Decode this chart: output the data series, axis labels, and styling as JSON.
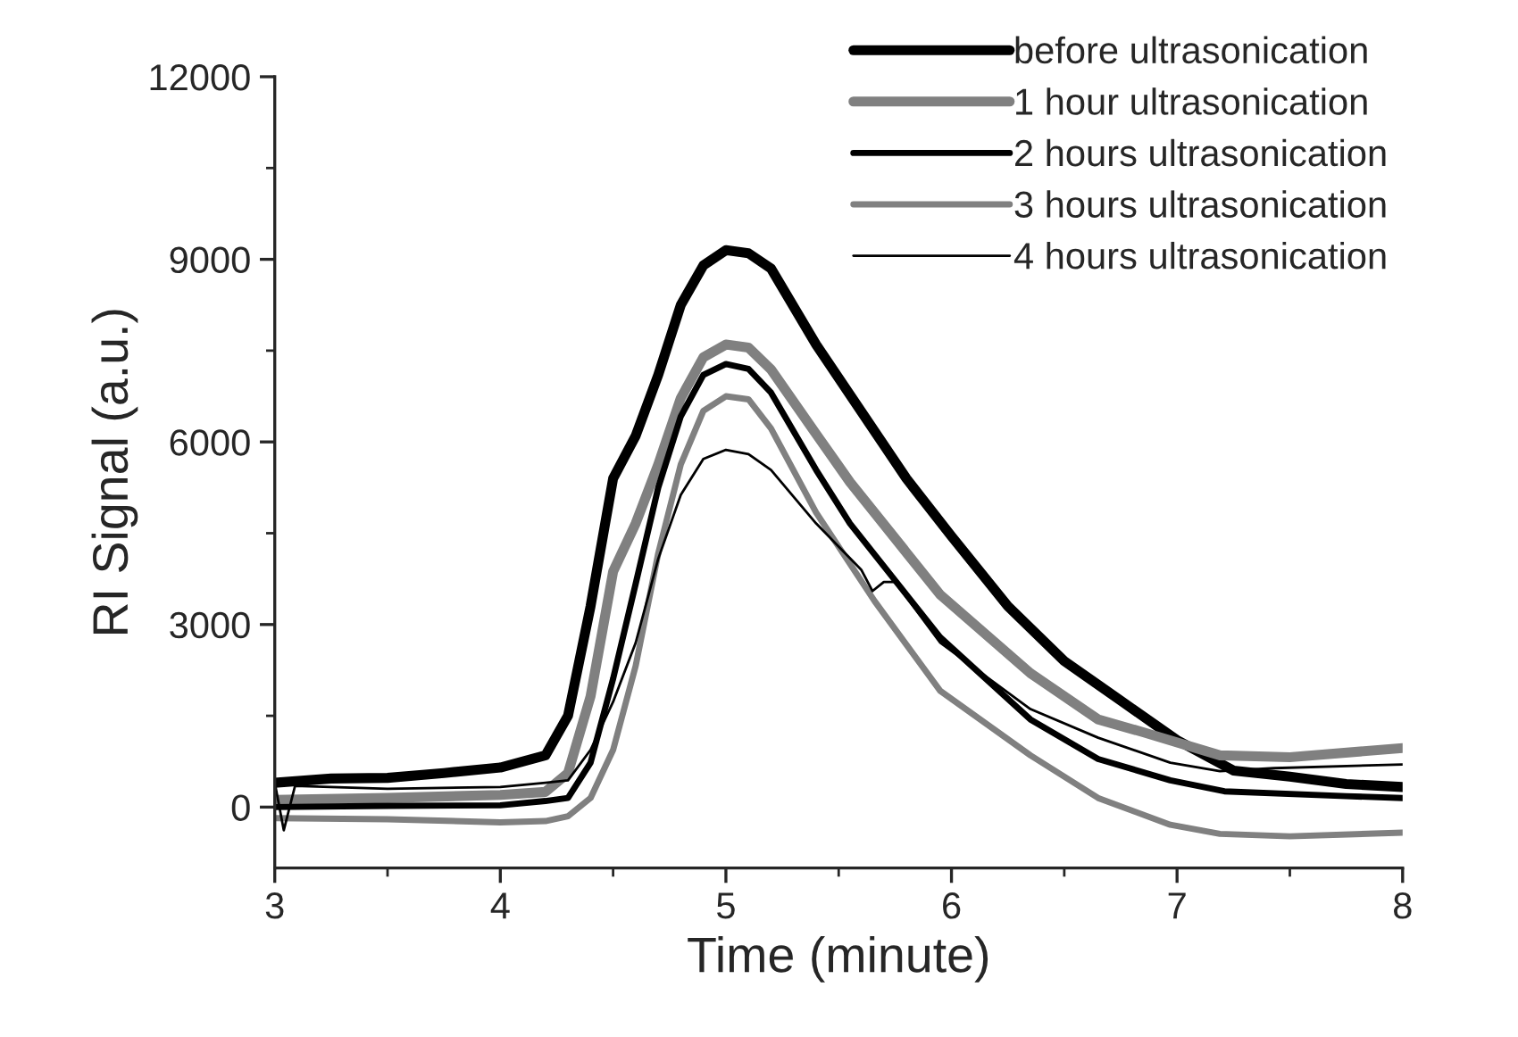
{
  "chart_data": {
    "type": "line",
    "xlabel": "Time (minute)",
    "ylabel": "RI Signal (a.u.)",
    "xlim": [
      3,
      8
    ],
    "xticks": [
      3,
      4,
      5,
      6,
      7,
      8
    ],
    "ylim": [
      -1000,
      12000
    ],
    "yticks": [
      0,
      3000,
      6000,
      9000,
      12000
    ],
    "grid": false,
    "legend": "top right",
    "line_style": "solid",
    "marker": "none",
    "series": [
      {
        "name": "before ultrasonication",
        "color": "#000000",
        "x": [
          3,
          3.25,
          3.5,
          3.75,
          4,
          4.2,
          4.3,
          4.4,
          4.5,
          4.6,
          4.7,
          4.8,
          4.9,
          5.0,
          5.1,
          5.2,
          5.4,
          5.6,
          5.8,
          6.0,
          6.25,
          6.5,
          6.75,
          7.0,
          7.25,
          7.5,
          7.75,
          8.0
        ],
        "values": [
          400,
          470,
          480,
          560,
          650,
          850,
          1500,
          3300,
          5400,
          6100,
          7100,
          8250,
          8900,
          9150,
          9100,
          8850,
          7600,
          6500,
          5400,
          4450,
          3300,
          2400,
          1750,
          1100,
          600,
          500,
          380,
          330
        ]
      },
      {
        "name": "1 hour ultrasonication",
        "color": "#808080",
        "x": [
          3,
          3.5,
          4,
          4.2,
          4.3,
          4.4,
          4.5,
          4.6,
          4.7,
          4.8,
          4.9,
          5.0,
          5.1,
          5.2,
          5.4,
          5.55,
          5.95,
          6.35,
          6.65,
          6.85,
          7.19,
          7.5,
          8.0
        ],
        "values": [
          120,
          150,
          200,
          250,
          560,
          1820,
          3870,
          4660,
          5630,
          6720,
          7390,
          7600,
          7550,
          7190,
          6130,
          5340,
          3490,
          2200,
          1440,
          1230,
          850,
          820,
          970
        ]
      },
      {
        "name": "2 hours ultrasonication",
        "color": "#000000",
        "x": [
          3,
          3.5,
          4,
          4.2,
          4.3,
          4.4,
          4.5,
          4.6,
          4.7,
          4.8,
          4.9,
          5.0,
          5.1,
          5.2,
          5.4,
          5.55,
          5.95,
          6.35,
          6.65,
          6.97,
          7.21,
          7.75,
          8.0
        ],
        "values": [
          0,
          20,
          30,
          100,
          150,
          730,
          2110,
          3670,
          5250,
          6420,
          7100,
          7280,
          7200,
          6810,
          5540,
          4660,
          2790,
          1440,
          790,
          440,
          260,
          180,
          150
        ]
      },
      {
        "name": "3 hours ultrasonication",
        "color": "#808080",
        "x": [
          3,
          3.5,
          4,
          4.2,
          4.3,
          4.4,
          4.5,
          4.6,
          4.7,
          4.8,
          4.9,
          5.0,
          5.1,
          5.2,
          5.4,
          5.66,
          5.95,
          6.35,
          6.65,
          6.97,
          7.19,
          7.5,
          8.0
        ],
        "values": [
          -180,
          -200,
          -250,
          -230,
          -150,
          150,
          940,
          2320,
          4170,
          5630,
          6510,
          6750,
          6700,
          6220,
          4840,
          3380,
          1910,
          850,
          150,
          -290,
          -440,
          -480,
          -420
        ]
      },
      {
        "name": "4 hours ultrasonication",
        "color": "#000000",
        "x": [
          3,
          3.04,
          3.09,
          3.5,
          4,
          4.2,
          4.3,
          4.4,
          4.5,
          4.6,
          4.7,
          4.8,
          4.9,
          5.0,
          5.1,
          5.2,
          5.4,
          5.6,
          5.65,
          5.7,
          5.75,
          5.95,
          6.35,
          6.65,
          6.97,
          7.19,
          7.43,
          8.0
        ],
        "values": [
          400,
          -380,
          350,
          300,
          330,
          400,
          440,
          940,
          1730,
          2700,
          4080,
          5130,
          5720,
          5870,
          5800,
          5540,
          4660,
          3900,
          3550,
          3700,
          3700,
          2700,
          1610,
          1140,
          730,
          590,
          640,
          700
        ]
      }
    ]
  }
}
